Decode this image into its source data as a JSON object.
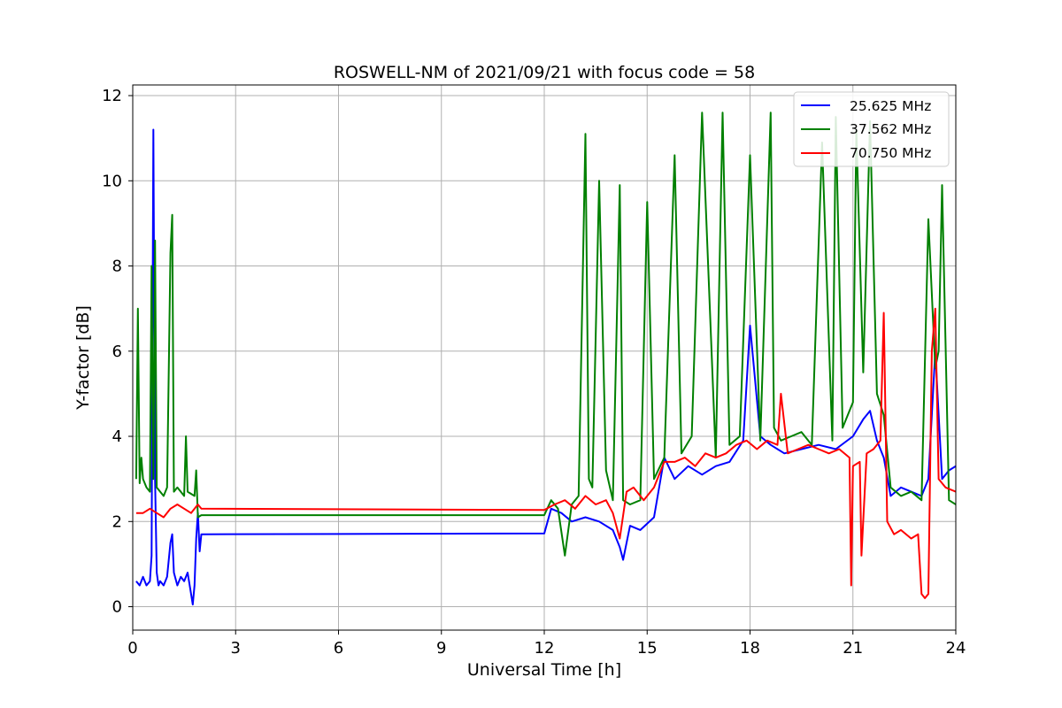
{
  "chart_data": {
    "type": "line",
    "title": "ROSWELL-NM of 2021/09/21 with focus code = 58",
    "xlabel": "Universal Time [h]",
    "ylabel": "Y-factor [dB]",
    "xlim": [
      0,
      24
    ],
    "ylim": [
      -0.55,
      12.25
    ],
    "xticks": [
      0,
      3,
      6,
      9,
      12,
      15,
      18,
      21,
      24
    ],
    "yticks": [
      0,
      2,
      4,
      6,
      8,
      10,
      12
    ],
    "grid": true,
    "legend_position": "top-right",
    "series": [
      {
        "name": "25.625 MHz",
        "color": "#0000ff",
        "x": [
          0.1,
          0.2,
          0.3,
          0.4,
          0.5,
          0.55,
          0.6,
          0.65,
          0.7,
          0.75,
          0.8,
          0.9,
          1.0,
          1.1,
          1.15,
          1.2,
          1.3,
          1.4,
          1.5,
          1.6,
          1.7,
          1.75,
          1.8,
          1.85,
          1.9,
          1.95,
          2.0,
          12.0,
          12.2,
          12.5,
          12.8,
          13.2,
          13.6,
          14.0,
          14.2,
          14.3,
          14.5,
          14.8,
          15.2,
          15.5,
          15.8,
          16.2,
          16.6,
          17.0,
          17.4,
          17.8,
          18.0,
          18.3,
          18.6,
          19.0,
          19.5,
          20.0,
          20.5,
          21.0,
          21.3,
          21.5,
          21.7,
          21.9,
          22.1,
          22.4,
          22.7,
          23.0,
          23.2,
          23.4,
          23.6,
          23.8,
          24.0
        ],
        "y": [
          0.6,
          0.5,
          0.7,
          0.5,
          0.6,
          1.2,
          11.2,
          3.0,
          0.8,
          0.5,
          0.6,
          0.5,
          0.7,
          1.5,
          1.7,
          0.8,
          0.5,
          0.7,
          0.6,
          0.8,
          0.3,
          0.05,
          0.5,
          1.6,
          2.2,
          1.3,
          1.7,
          1.72,
          2.3,
          2.2,
          2.0,
          2.1,
          2.0,
          1.8,
          1.4,
          1.1,
          1.9,
          1.8,
          2.1,
          3.5,
          3.0,
          3.3,
          3.1,
          3.3,
          3.4,
          3.9,
          6.6,
          4.0,
          3.8,
          3.6,
          3.7,
          3.8,
          3.7,
          4.0,
          4.4,
          4.6,
          3.9,
          3.5,
          2.6,
          2.8,
          2.7,
          2.6,
          3.0,
          6.0,
          3.0,
          3.2,
          3.3
        ]
      },
      {
        "name": "37.562 MHz",
        "color": "#008000",
        "x": [
          0.1,
          0.15,
          0.2,
          0.25,
          0.3,
          0.4,
          0.5,
          0.55,
          0.6,
          0.65,
          0.7,
          0.8,
          0.9,
          1.0,
          1.1,
          1.15,
          1.2,
          1.3,
          1.5,
          1.55,
          1.6,
          1.8,
          1.85,
          1.9,
          2.0,
          12.0,
          12.2,
          12.4,
          12.6,
          12.8,
          13.0,
          13.2,
          13.3,
          13.4,
          13.6,
          13.8,
          14.0,
          14.2,
          14.3,
          14.5,
          14.8,
          15.0,
          15.2,
          15.5,
          15.8,
          16.0,
          16.3,
          16.6,
          17.0,
          17.2,
          17.4,
          17.7,
          18.0,
          18.3,
          18.6,
          18.7,
          18.9,
          19.2,
          19.5,
          19.8,
          20.1,
          20.4,
          20.5,
          20.7,
          21.0,
          21.1,
          21.3,
          21.5,
          21.7,
          21.9,
          22.1,
          22.4,
          22.7,
          23.0,
          23.2,
          23.4,
          23.5,
          23.6,
          23.8,
          24.0
        ],
        "y": [
          3.0,
          7.0,
          2.9,
          3.5,
          3.0,
          2.8,
          2.7,
          8.0,
          3.0,
          8.6,
          2.8,
          2.7,
          2.6,
          2.8,
          8.3,
          9.2,
          2.7,
          2.8,
          2.6,
          4.0,
          2.7,
          2.6,
          3.2,
          2.1,
          2.15,
          2.15,
          2.5,
          2.3,
          1.2,
          2.4,
          2.6,
          11.1,
          3.0,
          2.8,
          10.0,
          3.2,
          2.5,
          9.9,
          2.5,
          2.4,
          2.5,
          9.5,
          3.0,
          3.5,
          10.6,
          3.6,
          4.0,
          11.6,
          3.5,
          11.6,
          3.8,
          4.0,
          10.6,
          3.9,
          11.6,
          4.2,
          3.9,
          4.0,
          4.1,
          3.8,
          10.9,
          3.9,
          11.5,
          4.2,
          4.8,
          11.2,
          5.5,
          11.4,
          5.0,
          4.5,
          2.8,
          2.6,
          2.7,
          2.5,
          9.1,
          5.6,
          6.0,
          9.9,
          2.5,
          2.4
        ]
      },
      {
        "name": "70.750 MHz",
        "color": "#ff0000",
        "x": [
          0.1,
          0.3,
          0.5,
          0.7,
          0.9,
          1.1,
          1.3,
          1.5,
          1.7,
          1.9,
          2.0,
          12.0,
          12.3,
          12.6,
          12.9,
          13.2,
          13.5,
          13.8,
          14.0,
          14.2,
          14.4,
          14.6,
          14.9,
          15.2,
          15.5,
          15.8,
          16.1,
          16.4,
          16.7,
          17.0,
          17.3,
          17.6,
          17.9,
          18.2,
          18.5,
          18.8,
          18.9,
          19.1,
          19.4,
          19.7,
          20.0,
          20.3,
          20.6,
          20.9,
          20.95,
          21.0,
          21.2,
          21.25,
          21.4,
          21.6,
          21.8,
          21.9,
          22.0,
          22.2,
          22.4,
          22.7,
          22.9,
          23.0,
          23.1,
          23.2,
          23.3,
          23.4,
          23.5,
          23.7,
          24.0
        ],
        "y": [
          2.2,
          2.2,
          2.3,
          2.2,
          2.1,
          2.3,
          2.4,
          2.3,
          2.2,
          2.4,
          2.3,
          2.27,
          2.4,
          2.5,
          2.3,
          2.6,
          2.4,
          2.5,
          2.2,
          1.6,
          2.7,
          2.8,
          2.5,
          2.8,
          3.4,
          3.4,
          3.5,
          3.3,
          3.6,
          3.5,
          3.6,
          3.8,
          3.9,
          3.7,
          3.9,
          3.8,
          5.0,
          3.6,
          3.7,
          3.8,
          3.7,
          3.6,
          3.7,
          3.5,
          0.5,
          3.3,
          3.4,
          1.2,
          3.6,
          3.7,
          3.9,
          6.9,
          2.0,
          1.7,
          1.8,
          1.6,
          1.7,
          0.3,
          0.2,
          0.3,
          6.0,
          7.0,
          3.0,
          2.8,
          2.7
        ]
      }
    ]
  }
}
